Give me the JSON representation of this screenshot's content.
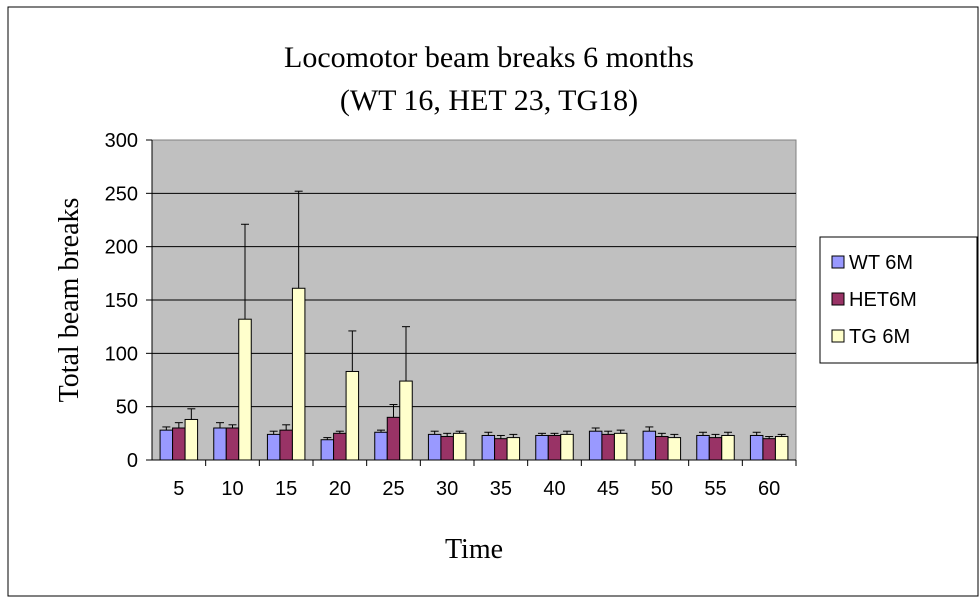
{
  "chart_data": {
    "type": "bar",
    "title": "Locomotor beam breaks 6 months",
    "subtitle": "(WT 16, HET 23, TG18)",
    "x_label": "Time",
    "y_label": "Total beam breaks",
    "categories": [
      "5",
      "10",
      "15",
      "20",
      "25",
      "30",
      "35",
      "40",
      "45",
      "50",
      "55",
      "60"
    ],
    "series": [
      {
        "name": "WT 6M",
        "color": "#9999ff",
        "values": [
          28,
          30,
          24,
          19,
          26,
          24,
          23,
          23,
          27,
          27,
          23,
          23
        ],
        "errors": [
          3,
          5,
          3,
          2,
          2,
          3,
          3,
          2,
          3,
          4,
          3,
          3
        ]
      },
      {
        "name": "HET6M",
        "color": "#993366",
        "values": [
          30,
          30,
          28,
          25,
          40,
          22,
          20,
          23,
          24,
          22,
          21,
          20
        ],
        "errors": [
          5,
          3,
          5,
          2,
          12,
          3,
          3,
          2,
          3,
          3,
          3,
          2
        ]
      },
      {
        "name": "TG 6M",
        "color": "#ffffcc",
        "values": [
          38,
          132,
          161,
          83,
          74,
          25,
          21,
          24,
          25,
          21,
          23,
          22
        ],
        "errors": [
          10,
          89,
          91,
          38,
          51,
          2,
          3,
          3,
          3,
          3,
          3,
          2
        ]
      }
    ],
    "ylim": [
      0,
      300
    ],
    "yticks": [
      0,
      50,
      100,
      150,
      200,
      250,
      300
    ],
    "grid": true,
    "legend": "right"
  }
}
